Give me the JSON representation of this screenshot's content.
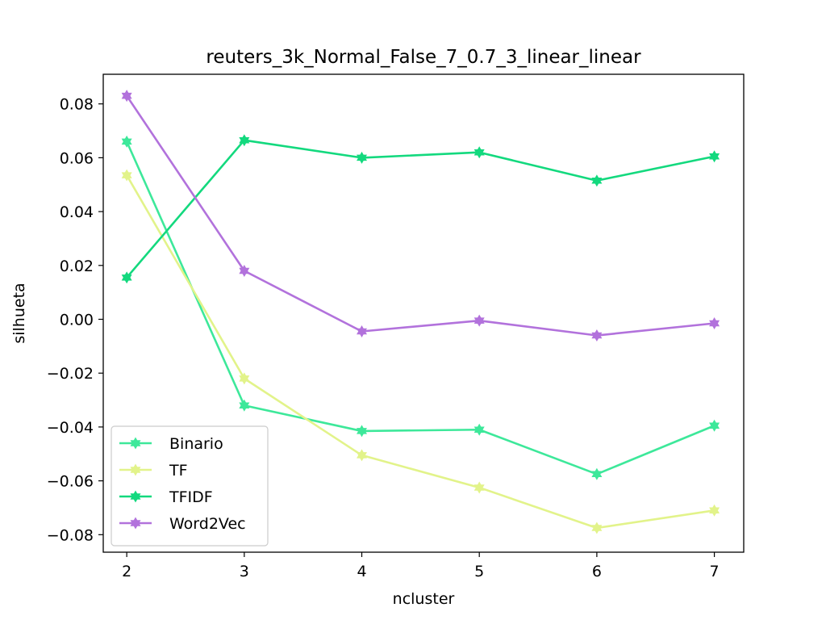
{
  "chart_data": {
    "type": "line",
    "title": "reuters_3k_Normal_False_7_0.7_3_linear_linear",
    "xlabel": "ncluster",
    "ylabel": "silhueta",
    "x": [
      2,
      3,
      4,
      5,
      6,
      7
    ],
    "xticks": [
      "2",
      "3",
      "4",
      "5",
      "6",
      "7"
    ],
    "xlim": [
      1.8,
      7.25
    ],
    "yticks": [
      "0.08",
      "0.06",
      "0.04",
      "0.02",
      "0.00",
      "−0.02",
      "−0.04",
      "−0.06",
      "−0.08"
    ],
    "ytick_values": [
      0.08,
      0.06,
      0.04,
      0.02,
      0.0,
      -0.02,
      -0.04,
      -0.06,
      -0.08
    ],
    "ylim": [
      -0.0865,
      0.091
    ],
    "grid": false,
    "legend_position": "lower-left",
    "series": [
      {
        "name": "Binario",
        "color": "#3de89a",
        "values": [
          0.066,
          -0.032,
          -0.0415,
          -0.041,
          -0.0575,
          -0.0395
        ]
      },
      {
        "name": "TF",
        "color": "#e2f38a",
        "values": [
          0.0535,
          -0.022,
          -0.0505,
          -0.0625,
          -0.0775,
          -0.071
        ]
      },
      {
        "name": "TFIDF",
        "color": "#13d97e",
        "values": [
          0.0155,
          0.0665,
          0.06,
          0.062,
          0.0515,
          0.0605
        ]
      },
      {
        "name": "Word2Vec",
        "color": "#b272dc",
        "values": [
          0.083,
          0.018,
          -0.0045,
          -0.0005,
          -0.006,
          -0.0015
        ]
      }
    ]
  }
}
